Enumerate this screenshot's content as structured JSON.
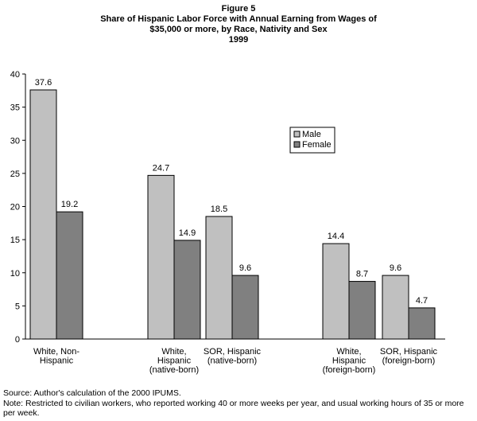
{
  "titles": {
    "figure": "Figure 5",
    "line1": "Share of Hispanic Labor Force with Annual Earning from Wages of",
    "line2": "$35,000 or more, by Race, Nativity and Sex",
    "line3": "1999"
  },
  "chart_data": {
    "type": "bar",
    "title": "Share of Hispanic Labor Force with Annual Earning from Wages of $35,000 or more, by Race, Nativity and Sex 1999",
    "categories": [
      [
        "White, Non-",
        "Hispanic"
      ],
      [
        "White,",
        "Hispanic",
        "(native-born)"
      ],
      [
        "SOR, Hispanic",
        "(native-born)"
      ],
      [
        "White,",
        "Hispanic",
        "(foreign-born)"
      ],
      [
        "SOR, Hispanic",
        "(foreign-born)"
      ]
    ],
    "series": [
      {
        "name": "Male",
        "values": [
          37.6,
          24.7,
          18.5,
          14.4,
          9.6
        ],
        "color": "#c0c0c0"
      },
      {
        "name": "Female",
        "values": [
          19.2,
          14.9,
          9.6,
          8.7,
          4.7
        ],
        "color": "#808080"
      }
    ],
    "y_ticks": [
      "0",
      "5",
      "10",
      "15",
      "20",
      "25",
      "30",
      "35",
      "40"
    ],
    "ylim": [
      0,
      40
    ],
    "legend_position": "right",
    "grid": false
  },
  "footer": {
    "source": "Source: Author's calculation of the 2000 IPUMS.",
    "note": "Note: Restricted to civilian workers, who reported working 40 or more weeks per year, and usual working hours of 35 or more per week."
  }
}
